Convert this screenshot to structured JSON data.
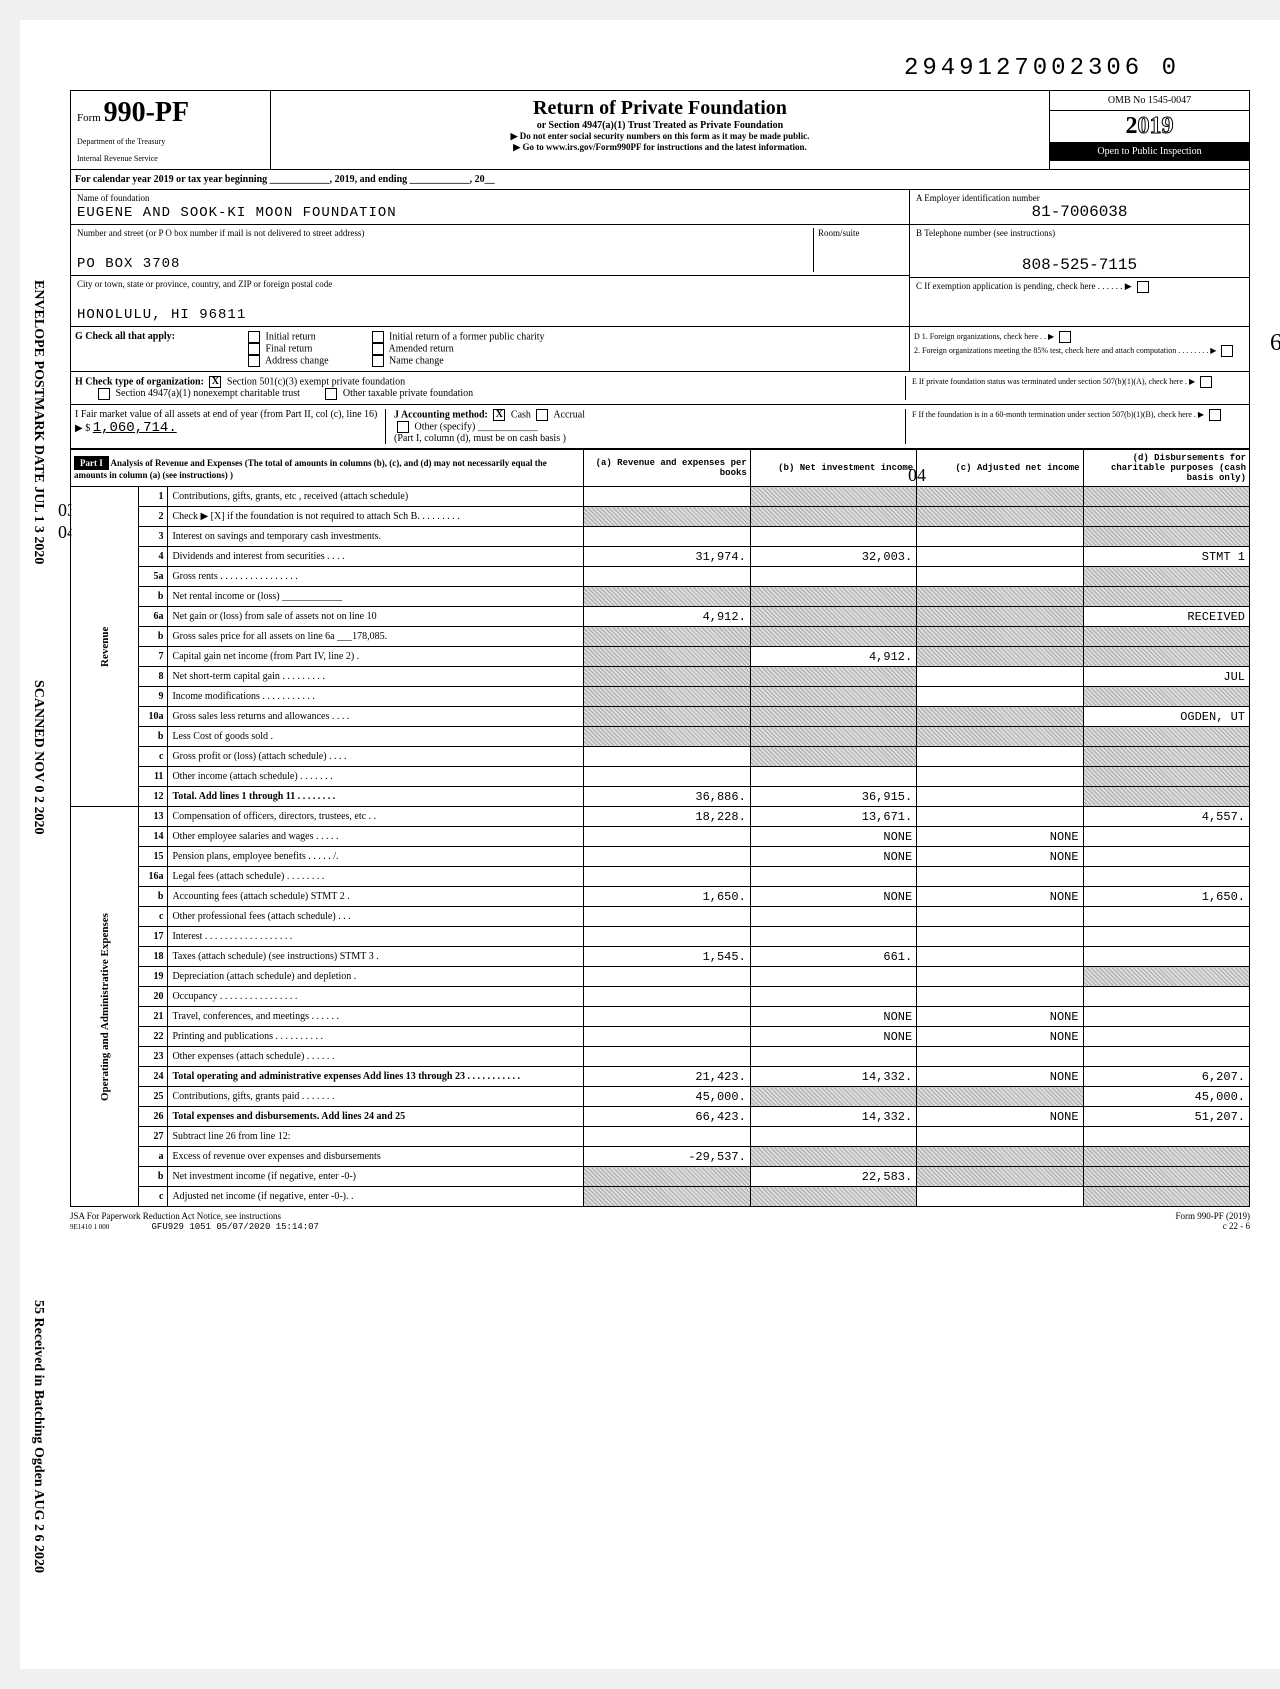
{
  "doc_id": "2949127002306 0",
  "form": {
    "prefix": "Form",
    "number": "990-PF",
    "dept1": "Department of the Treasury",
    "dept2": "Internal Revenue Service"
  },
  "header": {
    "title": "Return of Private Foundation",
    "sub1": "or Section 4947(a)(1) Trust Treated as Private Foundation",
    "sub2": "▶ Do not enter social security numbers on this form as it may be made public.",
    "sub3": "▶ Go to www.irs.gov/Form990PF for instructions and the latest information.",
    "omb": "OMB No 1545-0047",
    "year_prefix": "2",
    "year_rest": "019",
    "open": "Open to Public Inspection"
  },
  "cal_year": "For calendar year 2019 or tax year beginning ____________, 2019, and ending ____________, 20__",
  "foundation": {
    "name_label": "Name of foundation",
    "name": "EUGENE AND SOOK-KI MOON FOUNDATION",
    "addr_label": "Number and street (or P O  box number if mail is not delivered to street address)",
    "room_label": "Room/suite",
    "addr": "PO BOX 3708",
    "city_label": "City or town, state or province, country, and ZIP or foreign postal code",
    "city": "HONOLULU, HI 96811"
  },
  "right": {
    "a_label": "A  Employer identification number",
    "ein": "81-7006038",
    "b_label": "B  Telephone number (see instructions)",
    "phone": "808-525-7115",
    "c_label": "C  If exemption application is pending, check here . . . . . . ▶",
    "d1": "D  1. Foreign organizations, check here . . ▶",
    "d2": "2. Foreign organizations meeting the 85% test, check here and attach computation . . . . . . . . ▶",
    "e": "E  If private foundation status was terminated under section 507(b)(1)(A), check here . ▶",
    "f": "F  If the foundation is in a 60-month termination under section 507(b)(1)(B), check here . ▶"
  },
  "g": {
    "label": "G Check all that apply:",
    "opts": [
      "Initial return",
      "Final return",
      "Address change",
      "Initial return of a former public charity",
      "Amended return",
      "Name change"
    ]
  },
  "h": {
    "label": "H Check type of organization:",
    "opt1": "Section 501(c)(3) exempt private foundation",
    "opt2": "Section 4947(a)(1) nonexempt charitable trust",
    "opt3": "Other taxable private foundation"
  },
  "i": {
    "label": "I  Fair market value of all assets at end of year (from Part II, col (c), line 16) ▶ $",
    "value": "1,060,714."
  },
  "j": {
    "label": "J Accounting method:",
    "cash": "Cash",
    "accrual": "Accrual",
    "other": "Other (specify) ____________",
    "note": "(Part I, column (d), must be on cash basis )"
  },
  "part1": {
    "label": "Part I",
    "title": "Analysis of Revenue and Expenses (The total of amounts in columns (b), (c), and (d) may not necessarily equal the amounts in column (a) (see instructions) )",
    "col_a": "(a) Revenue and expenses per books",
    "col_b": "(b) Net investment income",
    "col_c": "(c) Adjusted net income",
    "col_d": "(d) Disbursements for charitable purposes (cash basis only)"
  },
  "rows": [
    {
      "n": "1",
      "desc": "Contributions, gifts, grants, etc , received (attach schedule)",
      "a": "",
      "b": "shaded",
      "c": "shaded",
      "d": "shaded"
    },
    {
      "n": "2",
      "desc": "Check ▶ [X] if the foundation is not required to attach Sch B. . . . . . . . .",
      "a": "shaded",
      "b": "shaded",
      "c": "shaded",
      "d": "shaded"
    },
    {
      "n": "3",
      "desc": "Interest on savings and temporary cash investments.",
      "a": "",
      "b": "",
      "c": "",
      "d": "shaded"
    },
    {
      "n": "4",
      "desc": "Dividends and interest from securities . . . .",
      "a": "31,974.",
      "b": "32,003.",
      "c": "",
      "d": "STMT 1"
    },
    {
      "n": "5a",
      "desc": "Gross rents . . . . . . . . . . . . . . . .",
      "a": "",
      "b": "",
      "c": "",
      "d": "shaded"
    },
    {
      "n": "b",
      "desc": "Net rental income or (loss) ____________",
      "a": "shaded",
      "b": "shaded",
      "c": "shaded",
      "d": "shaded"
    },
    {
      "n": "6a",
      "desc": "Net gain or (loss) from sale of assets not on line 10",
      "a": "4,912.",
      "b": "shaded",
      "c": "shaded",
      "d": "RECEIVED"
    },
    {
      "n": "b",
      "desc": "Gross sales price for all assets on line 6a ___178,085.",
      "a": "shaded",
      "b": "shaded",
      "c": "shaded",
      "d": "shaded"
    },
    {
      "n": "7",
      "desc": "Capital gain net income (from Part IV, line 2) .",
      "a": "shaded",
      "b": "4,912.",
      "c": "shaded",
      "d": "shaded"
    },
    {
      "n": "8",
      "desc": "Net short-term capital gain . . . . . . . . .",
      "a": "shaded",
      "b": "shaded",
      "c": "",
      "d": "JUL"
    },
    {
      "n": "9",
      "desc": "Income modifications . . . . . . . . . . .",
      "a": "shaded",
      "b": "shaded",
      "c": "",
      "d": "shaded"
    },
    {
      "n": "10a",
      "desc": "Gross sales less returns and allowances . . . .",
      "a": "shaded",
      "b": "shaded",
      "c": "shaded",
      "d": "OGDEN, UT"
    },
    {
      "n": "b",
      "desc": "Less Cost of goods sold .",
      "a": "shaded",
      "b": "shaded",
      "c": "shaded",
      "d": "shaded"
    },
    {
      "n": "c",
      "desc": "Gross profit or (loss) (attach schedule) . . . .",
      "a": "",
      "b": "shaded",
      "c": "",
      "d": "shaded"
    },
    {
      "n": "11",
      "desc": "Other income (attach schedule) . . . . . . .",
      "a": "",
      "b": "",
      "c": "",
      "d": "shaded"
    },
    {
      "n": "12",
      "desc": "Total. Add lines 1 through 11 . . . . . . . .",
      "a": "36,886.",
      "b": "36,915.",
      "c": "",
      "d": "shaded",
      "bold": true
    },
    {
      "n": "13",
      "desc": "Compensation of officers, directors, trustees, etc . .",
      "a": "18,228.",
      "b": "13,671.",
      "c": "",
      "d": "4,557."
    },
    {
      "n": "14",
      "desc": "Other employee salaries and wages . . . . .",
      "a": "",
      "b": "NONE",
      "c": "NONE",
      "d": ""
    },
    {
      "n": "15",
      "desc": "Pension plans, employee benefits . . . . . /.",
      "a": "",
      "b": "NONE",
      "c": "NONE",
      "d": ""
    },
    {
      "n": "16a",
      "desc": "Legal fees (attach schedule) . . . . . . . .",
      "a": "",
      "b": "",
      "c": "",
      "d": ""
    },
    {
      "n": "b",
      "desc": "Accounting fees (attach schedule) STMT 2 .",
      "a": "1,650.",
      "b": "NONE",
      "c": "NONE",
      "d": "1,650."
    },
    {
      "n": "c",
      "desc": "Other professional fees (attach schedule) . . .",
      "a": "",
      "b": "",
      "c": "",
      "d": ""
    },
    {
      "n": "17",
      "desc": "Interest . . . . . . . . . . . . . . . . . .",
      "a": "",
      "b": "",
      "c": "",
      "d": ""
    },
    {
      "n": "18",
      "desc": "Taxes (attach schedule) (see instructions) STMT 3 .",
      "a": "1,545.",
      "b": "661.",
      "c": "",
      "d": ""
    },
    {
      "n": "19",
      "desc": "Depreciation (attach schedule) and depletion .",
      "a": "",
      "b": "",
      "c": "",
      "d": "shaded"
    },
    {
      "n": "20",
      "desc": "Occupancy . . . . . . . . . . . . . . . .",
      "a": "",
      "b": "",
      "c": "",
      "d": ""
    },
    {
      "n": "21",
      "desc": "Travel, conferences, and meetings . . . . . .",
      "a": "",
      "b": "NONE",
      "c": "NONE",
      "d": ""
    },
    {
      "n": "22",
      "desc": "Printing and publications . . . . . . . . . .",
      "a": "",
      "b": "NONE",
      "c": "NONE",
      "d": ""
    },
    {
      "n": "23",
      "desc": "Other expenses (attach schedule) . . . . . .",
      "a": "",
      "b": "",
      "c": "",
      "d": ""
    },
    {
      "n": "24",
      "desc": "Total operating and administrative expenses Add lines 13 through 23 . . . . . . . . . . .",
      "a": "21,423.",
      "b": "14,332.",
      "c": "NONE",
      "d": "6,207.",
      "bold": true
    },
    {
      "n": "25",
      "desc": "Contributions, gifts, grants paid . . . . . . .",
      "a": "45,000.",
      "b": "shaded",
      "c": "shaded",
      "d": "45,000."
    },
    {
      "n": "26",
      "desc": "Total expenses and disbursements. Add lines 24 and 25",
      "a": "66,423.",
      "b": "14,332.",
      "c": "NONE",
      "d": "51,207.",
      "bold": true
    },
    {
      "n": "27",
      "desc": "Subtract line 26 from line 12:",
      "a": "",
      "b": "",
      "c": "",
      "d": ""
    },
    {
      "n": "a",
      "desc": "Excess of revenue over expenses and disbursements",
      "a": "-29,537.",
      "b": "shaded",
      "c": "shaded",
      "d": "shaded"
    },
    {
      "n": "b",
      "desc": "Net investment income (if negative, enter -0-)",
      "a": "shaded",
      "b": "22,583.",
      "c": "shaded",
      "d": "shaded"
    },
    {
      "n": "c",
      "desc": "Adjusted net income (if negative, enter -0-). .",
      "a": "shaded",
      "b": "shaded",
      "c": "",
      "d": "shaded"
    }
  ],
  "side_labels": {
    "revenue": "Revenue",
    "expenses": "Operating and Administrative Expenses"
  },
  "footer": {
    "left": "JSA For Paperwork Reduction Act Notice, see instructions",
    "jsa": "9E1410 1 000",
    "center": "GFU929 1051 05/07/2020 15:14:07",
    "right": "Form 990-PF (2019)",
    "page": "c 22 - 6"
  },
  "margin": {
    "postmark": "ENVELOPE POSTMARK DATE  JUL 1 3 2020",
    "scanned": "SCANNED NOV 0 2 2020",
    "received": "55 Received in Batching Ogden  AUG 2 6 2020"
  },
  "hw": {
    "l1": "03",
    "l2": "04",
    "r1": "6",
    "r2": "04"
  }
}
